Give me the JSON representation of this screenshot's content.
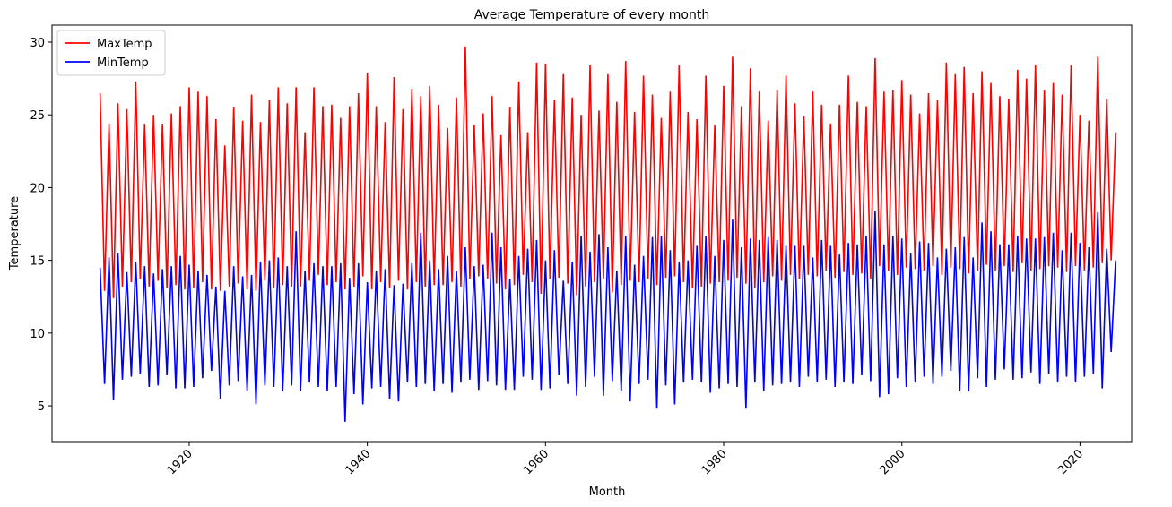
{
  "chart_data": {
    "type": "line",
    "title": "Average Temperature of every month",
    "x_label": "Month",
    "y_label": "Temperature",
    "x": [
      1910,
      1910.5,
      1911,
      1911.5,
      1912,
      1912.5,
      1913,
      1913.5,
      1914,
      1914.5,
      1915,
      1915.5,
      1916,
      1916.5,
      1917,
      1917.5,
      1918,
      1918.5,
      1919,
      1919.5,
      1920,
      1920.5,
      1921,
      1921.5,
      1922,
      1922.5,
      1923,
      1923.5,
      1924,
      1924.5,
      1925,
      1925.5,
      1926,
      1926.5,
      1927,
      1927.5,
      1928,
      1928.5,
      1929,
      1929.5,
      1930,
      1930.5,
      1931,
      1931.5,
      1932,
      1932.5,
      1933,
      1933.5,
      1934,
      1934.5,
      1935,
      1935.5,
      1936,
      1936.5,
      1937,
      1937.5,
      1938,
      1938.5,
      1939,
      1939.5,
      1940,
      1940.5,
      1941,
      1941.5,
      1942,
      1942.5,
      1943,
      1943.5,
      1944,
      1944.5,
      1945,
      1945.5,
      1946,
      1946.5,
      1947,
      1947.5,
      1948,
      1948.5,
      1949,
      1949.5,
      1950,
      1950.5,
      1951,
      1951.5,
      1952,
      1952.5,
      1953,
      1953.5,
      1954,
      1954.5,
      1955,
      1955.5,
      1956,
      1956.5,
      1957,
      1957.5,
      1958,
      1958.5,
      1959,
      1959.5,
      1960,
      1960.5,
      1961,
      1961.5,
      1962,
      1962.5,
      1963,
      1963.5,
      1964,
      1964.5,
      1965,
      1965.5,
      1966,
      1966.5,
      1967,
      1967.5,
      1968,
      1968.5,
      1969,
      1969.5,
      1970,
      1970.5,
      1971,
      1971.5,
      1972,
      1972.5,
      1973,
      1973.5,
      1974,
      1974.5,
      1975,
      1975.5,
      1976,
      1976.5,
      1977,
      1977.5,
      1978,
      1978.5,
      1979,
      1979.5,
      1980,
      1980.5,
      1981,
      1981.5,
      1982,
      1982.5,
      1983,
      1983.5,
      1984,
      1984.5,
      1985,
      1985.5,
      1986,
      1986.5,
      1987,
      1987.5,
      1988,
      1988.5,
      1989,
      1989.5,
      1990,
      1990.5,
      1991,
      1991.5,
      1992,
      1992.5,
      1993,
      1993.5,
      1994,
      1994.5,
      1995,
      1995.5,
      1996,
      1996.5,
      1997,
      1997.5,
      1998,
      1998.5,
      1999,
      1999.5,
      2000,
      2000.5,
      2001,
      2001.5,
      2002,
      2002.5,
      2003,
      2003.5,
      2004,
      2004.5,
      2005,
      2005.5,
      2006,
      2006.5,
      2007,
      2007.5,
      2008,
      2008.5,
      2009,
      2009.5,
      2010,
      2010.5,
      2011,
      2011.5,
      2012,
      2012.5,
      2013,
      2013.5,
      2014,
      2014.5,
      2015,
      2015.5,
      2016,
      2016.5,
      2017,
      2017.5,
      2018,
      2018.5,
      2019,
      2019.5,
      2020,
      2020.5,
      2021,
      2021.5,
      2022,
      2022.5,
      2023,
      2023.5,
      2024
    ],
    "series": [
      {
        "name": "MaxTemp",
        "color": "#ff0000",
        "values": [
          26.5,
          12.9,
          24.4,
          12.4,
          25.8,
          13.2,
          25.4,
          13.5,
          27.3,
          13.7,
          24.4,
          13.2,
          25.0,
          13.6,
          24.4,
          13.1,
          25.1,
          13.3,
          25.6,
          13.0,
          26.9,
          13.1,
          26.6,
          13.5,
          26.3,
          13.0,
          24.7,
          12.9,
          22.9,
          13.2,
          25.5,
          13.4,
          24.6,
          13.0,
          26.4,
          12.9,
          24.5,
          13.6,
          26.0,
          13.1,
          26.9,
          13.3,
          25.8,
          13.2,
          26.9,
          13.2,
          23.8,
          13.6,
          26.9,
          14.0,
          25.6,
          13.3,
          25.7,
          13.5,
          24.8,
          13.0,
          25.6,
          13.2,
          26.5,
          13.9,
          27.9,
          13.0,
          25.6,
          13.5,
          24.5,
          13.1,
          27.6,
          13.6,
          25.4,
          13.0,
          26.8,
          13.5,
          26.3,
          13.2,
          27.0,
          13.3,
          25.7,
          13.3,
          24.1,
          13.5,
          26.2,
          13.2,
          29.7,
          13.7,
          24.3,
          13.9,
          25.1,
          13.7,
          26.3,
          13.4,
          23.6,
          13.0,
          25.5,
          13.3,
          27.3,
          14.0,
          23.8,
          13.5,
          28.6,
          12.7,
          28.5,
          13.7,
          26.0,
          13.8,
          27.8,
          13.4,
          26.2,
          12.6,
          25.0,
          13.2,
          28.4,
          13.5,
          25.3,
          13.7,
          27.8,
          12.8,
          25.9,
          13.3,
          28.7,
          13.6,
          25.2,
          13.5,
          27.7,
          13.7,
          26.4,
          13.3,
          24.8,
          13.8,
          26.6,
          13.9,
          28.4,
          13.5,
          25.2,
          13.1,
          24.7,
          13.2,
          27.7,
          13.4,
          24.3,
          13.5,
          27.0,
          13.6,
          29.0,
          13.8,
          25.6,
          13.4,
          28.2,
          13.1,
          26.6,
          13.5,
          24.6,
          13.9,
          26.7,
          13.6,
          27.7,
          14.0,
          25.8,
          13.7,
          24.9,
          14.0,
          26.6,
          13.9,
          25.7,
          14.3,
          24.4,
          13.8,
          25.7,
          14.2,
          27.7,
          14.0,
          25.9,
          14.1,
          25.6,
          13.7,
          28.9,
          14.6,
          26.6,
          14.3,
          26.7,
          14.0,
          27.4,
          14.5,
          26.4,
          14.4,
          25.1,
          14.3,
          26.5,
          14.6,
          26.0,
          14.0,
          28.6,
          14.5,
          27.8,
          14.4,
          28.3,
          14.1,
          26.5,
          14.3,
          28.0,
          14.7,
          27.2,
          14.3,
          26.3,
          14.6,
          26.1,
          14.2,
          28.1,
          14.8,
          27.5,
          14.3,
          28.4,
          14.4,
          26.7,
          14.6,
          27.2,
          14.5,
          26.4,
          14.2,
          28.4,
          14.6,
          25.0,
          14.3,
          24.6,
          14.5,
          29.0,
          14.8,
          26.1,
          15.0,
          23.8
        ]
      },
      {
        "name": "MinTemp",
        "color": "#0000ff",
        "values": [
          14.5,
          6.5,
          15.2,
          5.4,
          15.5,
          6.8,
          14.2,
          7.0,
          14.9,
          7.2,
          14.6,
          6.3,
          14.1,
          6.4,
          14.4,
          7.1,
          14.6,
          6.2,
          15.3,
          6.2,
          14.7,
          6.3,
          14.3,
          6.9,
          14.0,
          7.4,
          13.2,
          5.5,
          12.9,
          6.4,
          14.6,
          6.7,
          13.9,
          6.0,
          14.0,
          5.1,
          14.9,
          6.4,
          15.0,
          6.3,
          15.2,
          6.0,
          14.6,
          6.4,
          17.0,
          6.0,
          14.3,
          6.6,
          14.8,
          6.3,
          14.6,
          6.0,
          14.6,
          6.3,
          14.8,
          3.9,
          13.8,
          5.8,
          14.8,
          5.1,
          13.5,
          6.2,
          14.3,
          6.3,
          14.4,
          5.5,
          13.3,
          5.3,
          13.4,
          6.6,
          14.8,
          6.3,
          16.9,
          6.5,
          15.0,
          6.0,
          14.4,
          6.5,
          15.3,
          5.9,
          14.3,
          6.6,
          15.9,
          6.8,
          14.6,
          6.1,
          14.7,
          6.7,
          16.9,
          6.4,
          15.9,
          6.1,
          13.7,
          6.1,
          15.3,
          7.0,
          15.8,
          6.8,
          16.4,
          6.1,
          15.0,
          6.2,
          15.7,
          7.1,
          13.6,
          6.5,
          14.9,
          5.7,
          16.7,
          6.3,
          15.6,
          7.0,
          16.8,
          5.7,
          15.9,
          6.7,
          14.3,
          6.0,
          16.7,
          5.3,
          14.7,
          6.5,
          15.3,
          6.8,
          16.6,
          4.8,
          16.7,
          6.4,
          15.7,
          5.1,
          14.9,
          6.6,
          15.0,
          6.8,
          16.0,
          6.6,
          16.7,
          5.9,
          15.3,
          6.2,
          16.4,
          6.5,
          17.8,
          6.3,
          15.9,
          4.8,
          16.5,
          6.6,
          16.4,
          6.0,
          16.6,
          6.4,
          16.4,
          6.5,
          16.0,
          6.6,
          16.0,
          6.3,
          16.0,
          7.0,
          15.2,
          6.6,
          16.4,
          6.8,
          16.0,
          6.3,
          15.4,
          6.6,
          16.2,
          6.5,
          16.1,
          7.1,
          16.7,
          6.7,
          18.4,
          5.6,
          16.1,
          5.8,
          16.7,
          6.9,
          16.5,
          6.3,
          15.5,
          6.6,
          16.3,
          7.0,
          16.2,
          6.5,
          15.2,
          7.0,
          15.8,
          7.4,
          15.9,
          6.0,
          16.6,
          6.0,
          15.2,
          6.9,
          17.6,
          6.3,
          17.0,
          6.8,
          16.1,
          7.5,
          16.1,
          6.8,
          16.7,
          6.9,
          16.5,
          7.3,
          16.5,
          6.5,
          16.6,
          7.2,
          16.9,
          6.6,
          15.7,
          7.0,
          16.9,
          6.6,
          16.2,
          7.0,
          15.9,
          7.2,
          18.3,
          6.2,
          15.8,
          8.7,
          15.0
        ]
      }
    ],
    "xlim": [
      1904.6,
      2025.8
    ],
    "xticks": [
      1920,
      1940,
      1960,
      1980,
      2000,
      2020
    ],
    "ylim": [
      2.54,
      31.17
    ],
    "yticks": [
      5,
      10,
      15,
      20,
      25,
      30
    ],
    "grid": false,
    "legend": "upper left"
  }
}
